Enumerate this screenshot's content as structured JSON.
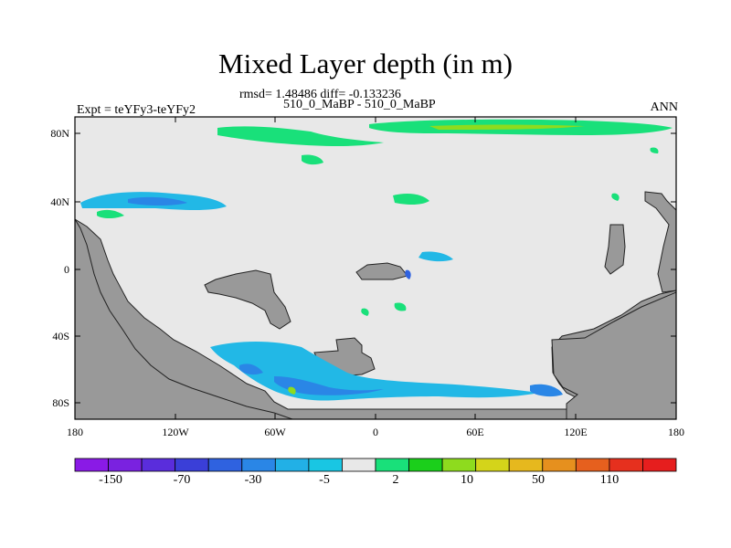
{
  "title": "Mixed Layer depth (in m)",
  "stats_line": "rmsd= 1.48486 diff= -0.133236",
  "cases_line": "510_0_MaBP - 510_0_MaBP",
  "experiment_label": "Expt = teYFy3-teYFy2",
  "season_label": "ANN",
  "lat_ticks": [
    "80N",
    "40N",
    "0",
    "40S",
    "80S"
  ],
  "lon_ticks": [
    "180",
    "120W",
    "60W",
    "0",
    "60E",
    "120E",
    "180"
  ],
  "colorbar": {
    "colors": [
      "#8a1ae6",
      "#7a22e0",
      "#5a2ddc",
      "#3a3fd8",
      "#2f62e0",
      "#2a86e6",
      "#22b0e6",
      "#19c6e3",
      "#e8e8e8",
      "#19e07a",
      "#1bcf1b",
      "#8edb1e",
      "#d4d41a",
      "#e6b81e",
      "#e6901e",
      "#e6601e",
      "#e6301e",
      "#e61e1e"
    ],
    "tick_labels": [
      "-150",
      "-70",
      "-30",
      "-5",
      "2",
      "10",
      "50",
      "110"
    ]
  },
  "map_colors": {
    "ocean_background": "#e8e8e8",
    "land_mask": "#999999",
    "negative_shade": "#22b8e6",
    "strong_negative": "#2a86e6",
    "positive_shade": "#19e07a",
    "strong_positive": "#8edb1e"
  }
}
